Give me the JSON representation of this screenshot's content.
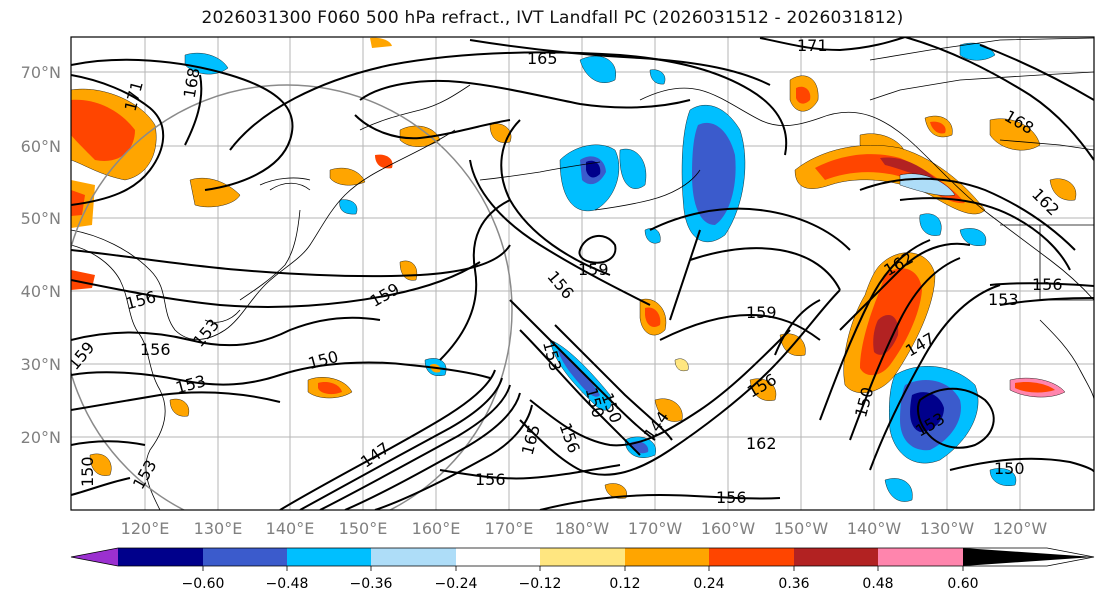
{
  "title": "2026031300 F060 500 hPa refract., IVT Landfall PC (2026031512 - 2026031812)",
  "map": {
    "lat_labels": [
      "70°N",
      "60°N",
      "50°N",
      "40°N",
      "30°N",
      "20°N"
    ],
    "lon_labels": [
      "120°E",
      "130°E",
      "140°E",
      "150°E",
      "160°E",
      "170°E",
      "180°W",
      "170°W",
      "160°W",
      "150°W",
      "140°W",
      "130°W",
      "120°W"
    ],
    "contour_labels": [
      "165",
      "171",
      "168",
      "171",
      "168",
      "162",
      "159",
      "156",
      "159",
      "153",
      "156",
      "159",
      "156",
      "156",
      "153",
      "150",
      "147",
      "150",
      "153",
      "156",
      "162",
      "162",
      "147",
      "150",
      "153",
      "150",
      "156",
      "156",
      "165",
      "144",
      "150",
      "153",
      "159",
      "156",
      "153",
      "150"
    ]
  },
  "colorbar": {
    "ticks": [
      "−0.60",
      "−0.48",
      "−0.36",
      "−0.24",
      "−0.12",
      "0.12",
      "0.24",
      "0.36",
      "0.48",
      "0.60"
    ],
    "colors": [
      "#9b30d0",
      "#00008b",
      "#3b5bcc",
      "#00bfff",
      "#aeddf8",
      "#ffffff",
      "#ffe680",
      "#ffa500",
      "#ff4500",
      "#b22222",
      "#ff85ad"
    ]
  }
}
